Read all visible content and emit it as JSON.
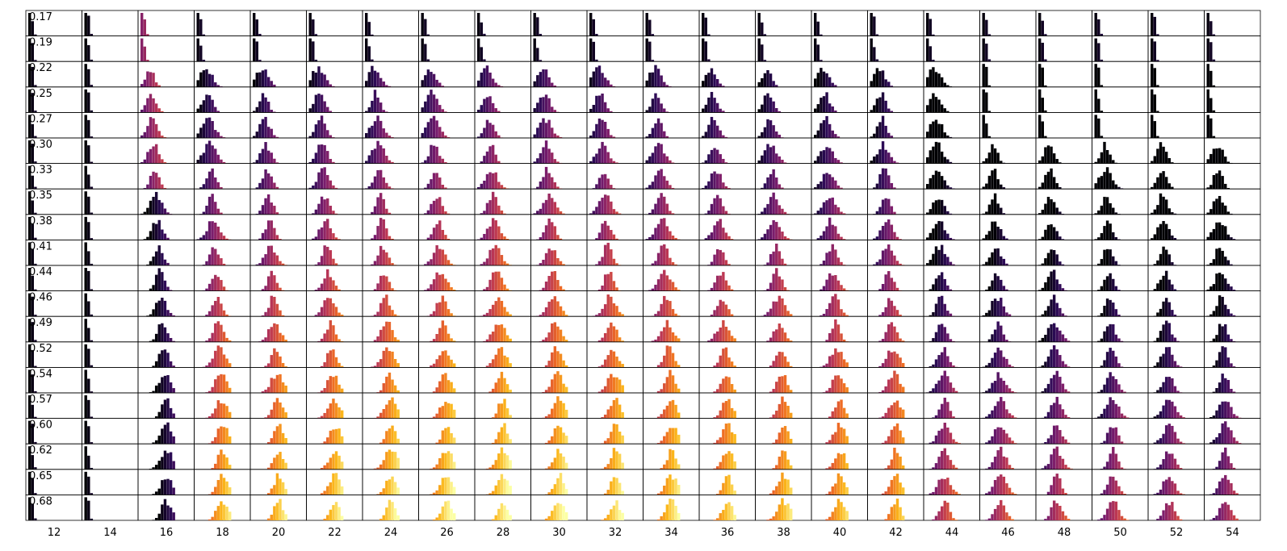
{
  "chart_data": {
    "type": "histogram-grid",
    "title": "",
    "xlabel": "",
    "ylabel": "",
    "colormap": "inferno",
    "cmap_stops": [
      "#000004",
      "#2c0b56",
      "#781c6d",
      "#bc3754",
      "#ed6925",
      "#fbb61a",
      "#fcffa4"
    ],
    "col_labels": [
      "12",
      "14",
      "16",
      "18",
      "20",
      "22",
      "24",
      "26",
      "28",
      "30",
      "32",
      "34",
      "36",
      "38",
      "40",
      "42",
      "44",
      "46",
      "48",
      "50",
      "52",
      "54"
    ],
    "row_labels": [
      "0.17",
      "0.19",
      "0.22",
      "0.25",
      "0.27",
      "0.30",
      "0.33",
      "0.35",
      "0.38",
      "0.41",
      "0.44",
      "0.46",
      "0.49",
      "0.52",
      "0.54",
      "0.57",
      "0.60",
      "0.62",
      "0.65",
      "0.68"
    ],
    "bins_per_panel": 12,
    "bar_color_note": "bar color encodes histogram mean (inferno colormap), dark = low, yellow = high",
    "grid": false,
    "axes_visible": false
  }
}
